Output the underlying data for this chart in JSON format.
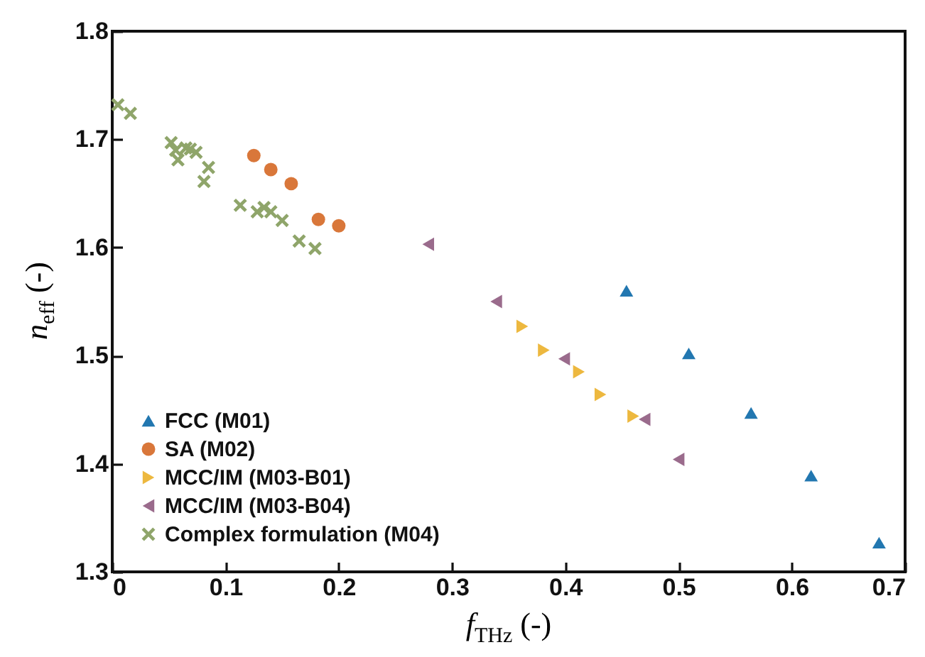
{
  "chart_data": {
    "type": "scatter",
    "xlabel": "f$_{THz}$ (-)",
    "ylabel": "n$_{eff}$ (-)",
    "xlim": [
      0,
      0.7
    ],
    "ylim": [
      1.3,
      1.8
    ],
    "xticks": [
      0,
      0.1,
      0.2,
      0.3,
      0.4,
      0.5,
      0.6,
      0.7
    ],
    "yticks": [
      1.3,
      1.4,
      1.5,
      1.6,
      1.7,
      1.8
    ],
    "legend": "bottom left",
    "grid": false,
    "series": [
      {
        "name": "FCC (M01)",
        "color": "#2277b0",
        "marker": "triangle",
        "x": [
          0.454,
          0.509,
          0.564,
          0.617,
          0.677
        ],
        "values": [
          1.56,
          1.502,
          1.447,
          1.389,
          1.327
        ]
      },
      {
        "name": "SA (M02)",
        "color": "#d9773a",
        "marker": "circle",
        "x": [
          0.125,
          0.14,
          0.158,
          0.182,
          0.2
        ],
        "values": [
          1.685,
          1.672,
          1.659,
          1.626,
          1.62
        ]
      },
      {
        "name": "MCC/IM (M03-B01)",
        "color": "#edb83f",
        "marker": "triangle-right",
        "x": [
          0.362,
          0.381,
          0.412,
          0.431,
          0.46
        ],
        "values": [
          1.527,
          1.505,
          1.485,
          1.464,
          1.444
        ]
      },
      {
        "name": "MCC/IM (M03-B04)",
        "color": "#9a6b8c",
        "marker": "triangle-left",
        "x": [
          0.279,
          0.339,
          0.399,
          0.47,
          0.5
        ],
        "values": [
          1.603,
          1.55,
          1.497,
          1.441,
          1.404
        ]
      },
      {
        "name": "Complex formulation (M04)",
        "color": "#8fa56a",
        "marker": "cross",
        "x": [
          0.005,
          0.016,
          0.052,
          0.056,
          0.058,
          0.065,
          0.069,
          0.074,
          0.085,
          0.081,
          0.113,
          0.128,
          0.134,
          0.14,
          0.15,
          0.165,
          0.179
        ],
        "values": [
          1.732,
          1.724,
          1.697,
          1.69,
          1.681,
          1.692,
          1.691,
          1.688,
          1.674,
          1.661,
          1.639,
          1.633,
          1.637,
          1.633,
          1.625,
          1.606,
          1.599
        ]
      }
    ]
  }
}
